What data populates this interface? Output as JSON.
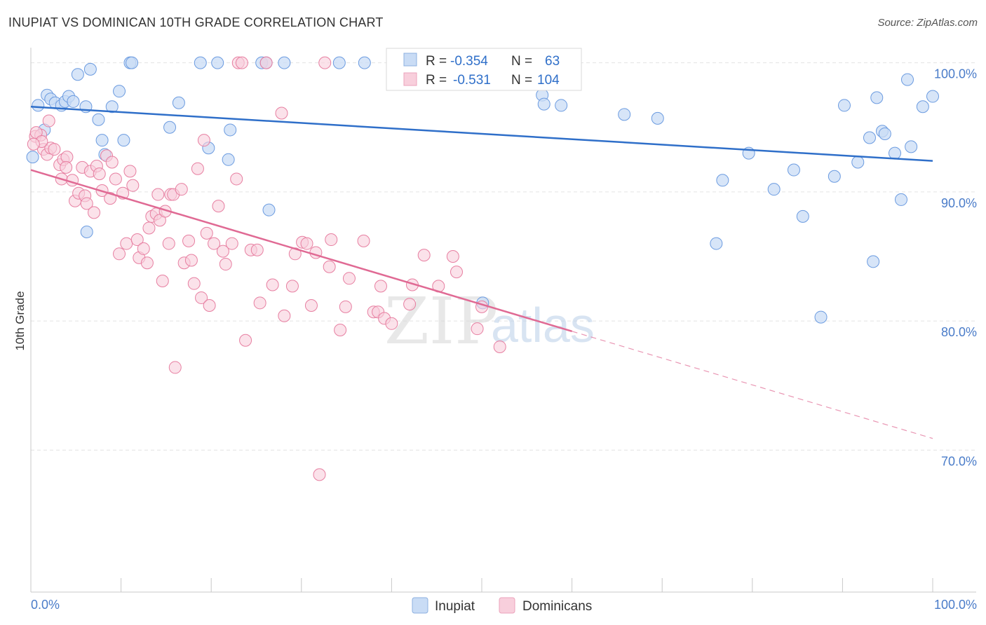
{
  "header": {
    "title": "INUPIAT VS DOMINICAN 10TH GRADE CORRELATION CHART",
    "source": "Source: ZipAtlas.com"
  },
  "watermark": {
    "zip": "ZIP",
    "atlas": "atlas"
  },
  "legend": {
    "rows": [
      {
        "r_label": "R =",
        "r_value": "-0.354",
        "n_label": "N =",
        "n_value": "63",
        "color": "#a9c7f0"
      },
      {
        "r_label": "R =",
        "r_value": "-0.531",
        "n_label": "N =",
        "n_value": "104",
        "color": "#f7b8cb"
      }
    ]
  },
  "bottom_legend": {
    "inupiat": "Inupiat",
    "dominicans": "Dominicans"
  },
  "chart_data": {
    "type": "scatter",
    "title": "INUPIAT VS DOMINICAN 10TH GRADE CORRELATION CHART",
    "xlabel": "",
    "ylabel": "10th Grade",
    "xlim": [
      0,
      100
    ],
    "ylim": [
      59,
      101.5
    ],
    "x_tick_labels": [
      "0.0%",
      "100.0%"
    ],
    "y_ticks": [
      70,
      80,
      90,
      100
    ],
    "y_tick_labels": [
      "70.0%",
      "80.0%",
      "90.0%",
      "100.0%"
    ],
    "grid": true,
    "colors": {
      "inupiat": "#6b9be0",
      "inupiat_fill": "#c9dcf5",
      "dominicans": "#e77fa1",
      "dominicans_fill": "#f8cfdc",
      "blue_line": "#2f6fc9",
      "pink_line": "#e06a94"
    },
    "series": [
      {
        "name": "Inupiat",
        "points": [
          [
            0.8,
            96.7
          ],
          [
            1.5,
            94.8
          ],
          [
            1.8,
            97.5
          ],
          [
            2.2,
            97.2
          ],
          [
            2.7,
            96.9
          ],
          [
            3.4,
            96.7
          ],
          [
            3.8,
            97.0
          ],
          [
            4.2,
            97.4
          ],
          [
            4.7,
            97.0
          ],
          [
            5.2,
            99.1
          ],
          [
            6.1,
            96.6
          ],
          [
            6.6,
            99.5
          ],
          [
            7.5,
            95.6
          ],
          [
            7.9,
            94.0
          ],
          [
            8.2,
            92.9
          ],
          [
            9.0,
            96.6
          ],
          [
            9.8,
            97.8
          ],
          [
            10.3,
            94.0
          ],
          [
            11.0,
            100.0
          ],
          [
            11.2,
            100.0
          ],
          [
            6.2,
            86.9
          ],
          [
            15.4,
            95.0
          ],
          [
            16.4,
            96.9
          ],
          [
            18.8,
            100.0
          ],
          [
            19.7,
            93.4
          ],
          [
            20.7,
            100.0
          ],
          [
            21.9,
            92.5
          ],
          [
            22.1,
            94.8
          ],
          [
            25.6,
            100.0
          ],
          [
            26.1,
            100.0
          ],
          [
            26.4,
            88.6
          ],
          [
            28.1,
            100.0
          ],
          [
            34.2,
            100.0
          ],
          [
            37.0,
            100.0
          ],
          [
            47.0,
            100.0
          ],
          [
            50.1,
            81.4
          ],
          [
            56.7,
            97.5
          ],
          [
            56.9,
            96.8
          ],
          [
            58.8,
            96.7
          ],
          [
            65.8,
            96.0
          ],
          [
            69.5,
            95.7
          ],
          [
            76.0,
            86.0
          ],
          [
            76.7,
            90.9
          ],
          [
            79.6,
            93.0
          ],
          [
            82.4,
            90.2
          ],
          [
            84.6,
            91.7
          ],
          [
            85.6,
            88.1
          ],
          [
            87.6,
            80.3
          ],
          [
            89.1,
            91.2
          ],
          [
            90.2,
            96.7
          ],
          [
            91.7,
            92.3
          ],
          [
            93.0,
            94.2
          ],
          [
            93.4,
            84.6
          ],
          [
            93.8,
            97.3
          ],
          [
            94.4,
            94.7
          ],
          [
            94.7,
            94.5
          ],
          [
            95.8,
            93.0
          ],
          [
            96.5,
            89.4
          ],
          [
            97.2,
            98.7
          ],
          [
            97.6,
            93.5
          ],
          [
            98.9,
            96.6
          ],
          [
            100.0,
            97.4
          ],
          [
            0.2,
            92.7
          ]
        ]
      },
      {
        "name": "Dominicans",
        "points": [
          [
            0.5,
            94.3
          ],
          [
            1.1,
            94.4
          ],
          [
            1.4,
            93.3
          ],
          [
            1.8,
            92.9
          ],
          [
            2.2,
            93.4
          ],
          [
            2.6,
            93.3
          ],
          [
            3.2,
            92.1
          ],
          [
            3.4,
            91.0
          ],
          [
            3.6,
            92.5
          ],
          [
            4.0,
            92.7
          ],
          [
            4.6,
            90.9
          ],
          [
            4.9,
            89.3
          ],
          [
            5.3,
            89.9
          ],
          [
            5.7,
            91.9
          ],
          [
            6.0,
            89.7
          ],
          [
            6.2,
            89.1
          ],
          [
            6.6,
            91.6
          ],
          [
            7.0,
            88.4
          ],
          [
            7.3,
            92.0
          ],
          [
            7.6,
            91.4
          ],
          [
            7.9,
            90.1
          ],
          [
            8.4,
            92.8
          ],
          [
            8.8,
            89.5
          ],
          [
            9.0,
            92.3
          ],
          [
            9.4,
            91.0
          ],
          [
            9.8,
            85.2
          ],
          [
            10.2,
            89.9
          ],
          [
            10.6,
            86.0
          ],
          [
            11.0,
            91.6
          ],
          [
            11.3,
            90.5
          ],
          [
            11.8,
            86.3
          ],
          [
            12.0,
            84.9
          ],
          [
            12.5,
            85.6
          ],
          [
            12.9,
            84.5
          ],
          [
            13.1,
            87.2
          ],
          [
            13.4,
            88.1
          ],
          [
            13.9,
            88.3
          ],
          [
            14.1,
            89.8
          ],
          [
            14.3,
            87.8
          ],
          [
            14.6,
            83.1
          ],
          [
            14.9,
            88.5
          ],
          [
            15.3,
            86.0
          ],
          [
            15.5,
            89.8
          ],
          [
            15.8,
            89.8
          ],
          [
            16.0,
            76.4
          ],
          [
            16.7,
            90.2
          ],
          [
            17.0,
            84.5
          ],
          [
            17.5,
            86.2
          ],
          [
            17.8,
            84.7
          ],
          [
            18.1,
            82.9
          ],
          [
            18.5,
            91.8
          ],
          [
            18.9,
            81.8
          ],
          [
            19.2,
            94.0
          ],
          [
            19.5,
            86.8
          ],
          [
            19.8,
            81.2
          ],
          [
            20.3,
            86.0
          ],
          [
            20.8,
            88.9
          ],
          [
            21.3,
            85.4
          ],
          [
            21.6,
            84.4
          ],
          [
            22.3,
            86.0
          ],
          [
            22.8,
            91.0
          ],
          [
            23.0,
            100.0
          ],
          [
            23.4,
            100.0
          ],
          [
            23.8,
            78.5
          ],
          [
            24.4,
            85.5
          ],
          [
            25.1,
            85.5
          ],
          [
            25.4,
            81.4
          ],
          [
            26.1,
            100.0
          ],
          [
            26.8,
            82.8
          ],
          [
            27.8,
            96.1
          ],
          [
            28.1,
            80.4
          ],
          [
            29.0,
            82.7
          ],
          [
            29.3,
            85.2
          ],
          [
            30.1,
            86.1
          ],
          [
            30.6,
            86.0
          ],
          [
            31.1,
            81.2
          ],
          [
            31.6,
            85.3
          ],
          [
            32.0,
            68.1
          ],
          [
            32.6,
            100.0
          ],
          [
            33.1,
            84.2
          ],
          [
            33.3,
            86.3
          ],
          [
            34.3,
            79.3
          ],
          [
            34.9,
            81.1
          ],
          [
            35.3,
            83.3
          ],
          [
            36.9,
            86.2
          ],
          [
            38.0,
            80.7
          ],
          [
            38.5,
            80.7
          ],
          [
            38.8,
            82.7
          ],
          [
            39.2,
            80.2
          ],
          [
            40.0,
            79.8
          ],
          [
            42.0,
            81.3
          ],
          [
            42.3,
            82.8
          ],
          [
            43.6,
            85.1
          ],
          [
            45.2,
            82.7
          ],
          [
            46.8,
            85.0
          ],
          [
            47.2,
            83.8
          ],
          [
            49.5,
            79.4
          ],
          [
            50.0,
            81.1
          ],
          [
            52.0,
            78.0
          ],
          [
            2.0,
            95.5
          ],
          [
            0.6,
            94.6
          ],
          [
            1.2,
            93.9
          ],
          [
            0.3,
            93.7
          ],
          [
            3.9,
            91.9
          ]
        ]
      }
    ],
    "trend_lines": [
      {
        "series": "Inupiat",
        "x": [
          0,
          100
        ],
        "y": [
          96.6,
          92.4
        ]
      },
      {
        "series": "Dominicans",
        "x": [
          0,
          60
        ],
        "y": [
          91.7,
          79.2
        ]
      },
      {
        "series": "Dominicans (projected)",
        "x": [
          60,
          100
        ],
        "y": [
          79.2,
          70.9
        ]
      }
    ]
  }
}
